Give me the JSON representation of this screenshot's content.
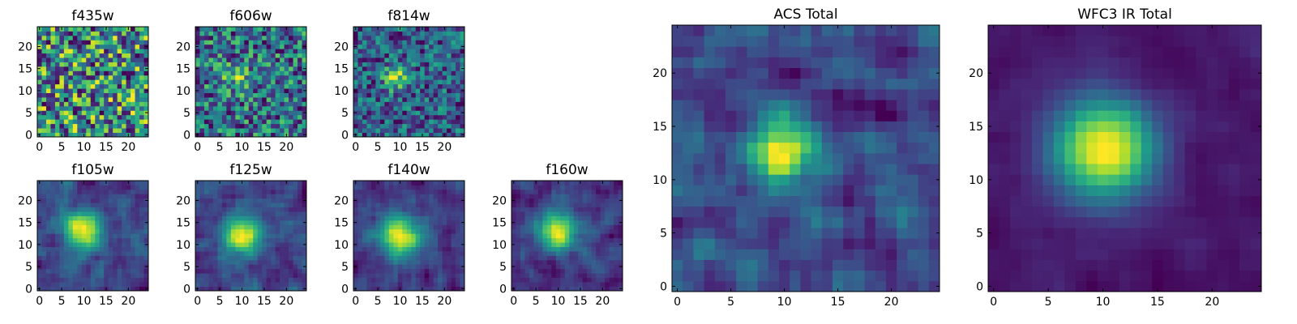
{
  "chart_data": [
    {
      "type": "heatmap",
      "title": "f435w",
      "xlim": [
        0,
        25
      ],
      "ylim": [
        0,
        25
      ],
      "x_ticks": [
        0,
        5,
        10,
        15,
        20
      ],
      "y_ticks": [
        0,
        5,
        10,
        15,
        20
      ],
      "grid_size": 25,
      "colormap": "viridis",
      "source_peak": null,
      "source_amplitude": 0.0,
      "source_width": 2.5,
      "noise_level": 1.0,
      "seed": 11
    },
    {
      "type": "heatmap",
      "title": "f606w",
      "xlim": [
        0,
        25
      ],
      "ylim": [
        0,
        25
      ],
      "x_ticks": [
        0,
        5,
        10,
        15,
        20
      ],
      "y_ticks": [
        0,
        5,
        10,
        15,
        20
      ],
      "grid_size": 25,
      "colormap": "viridis",
      "source_peak": [
        9,
        13
      ],
      "source_amplitude": 0.35,
      "source_width": 2.5,
      "noise_level": 1.0,
      "seed": 23
    },
    {
      "type": "heatmap",
      "title": "f814w",
      "xlim": [
        0,
        25
      ],
      "ylim": [
        0,
        25
      ],
      "x_ticks": [
        0,
        5,
        10,
        15,
        20
      ],
      "y_ticks": [
        0,
        5,
        10,
        15,
        20
      ],
      "grid_size": 25,
      "colormap": "viridis",
      "source_peak": [
        9,
        13
      ],
      "source_amplitude": 0.8,
      "source_width": 2.0,
      "noise_level": 1.0,
      "seed": 37
    },
    {
      "type": "heatmap",
      "title": "f105w",
      "xlim": [
        0,
        25
      ],
      "ylim": [
        0,
        25
      ],
      "x_ticks": [
        0,
        5,
        10,
        15,
        20
      ],
      "y_ticks": [
        0,
        5,
        10,
        15,
        20
      ],
      "grid_size": 25,
      "colormap": "viridis",
      "source_peak": [
        10,
        13
      ],
      "source_amplitude": 0.9,
      "source_width": 3.0,
      "noise_level": 0.75,
      "seed": 41
    },
    {
      "type": "heatmap",
      "title": "f125w",
      "xlim": [
        0,
        25
      ],
      "ylim": [
        0,
        25
      ],
      "x_ticks": [
        0,
        5,
        10,
        15,
        20
      ],
      "y_ticks": [
        0,
        5,
        10,
        15,
        20
      ],
      "grid_size": 25,
      "colormap": "viridis",
      "source_peak": [
        10,
        12
      ],
      "source_amplitude": 0.9,
      "source_width": 3.2,
      "noise_level": 0.75,
      "seed": 53
    },
    {
      "type": "heatmap",
      "title": "f140w",
      "xlim": [
        0,
        25
      ],
      "ylim": [
        0,
        25
      ],
      "x_ticks": [
        0,
        5,
        10,
        15,
        20
      ],
      "y_ticks": [
        0,
        5,
        10,
        15,
        20
      ],
      "grid_size": 25,
      "colormap": "viridis",
      "source_peak": [
        10,
        12
      ],
      "source_amplitude": 0.95,
      "source_width": 3.5,
      "noise_level": 0.7,
      "seed": 67
    },
    {
      "type": "heatmap",
      "title": "f160w",
      "xlim": [
        0,
        25
      ],
      "ylim": [
        0,
        25
      ],
      "x_ticks": [
        0,
        5,
        10,
        15,
        20
      ],
      "y_ticks": [
        0,
        5,
        10,
        15,
        20
      ],
      "grid_size": 25,
      "colormap": "viridis",
      "source_peak": [
        10,
        13
      ],
      "source_amplitude": 0.95,
      "source_width": 3.2,
      "noise_level": 0.7,
      "seed": 79
    },
    {
      "type": "heatmap",
      "title": "ACS Total",
      "xlim": [
        0,
        25
      ],
      "ylim": [
        0,
        25
      ],
      "x_ticks": [
        0,
        5,
        10,
        15,
        20
      ],
      "y_ticks": [
        0,
        5,
        10,
        15,
        20
      ],
      "grid_size": 25,
      "colormap": "viridis",
      "source_peak": [
        10,
        13
      ],
      "source_amplitude": 0.7,
      "source_width": 2.3,
      "noise_level": 0.8,
      "seed": 97
    },
    {
      "type": "heatmap",
      "title": "WFC3 IR Total",
      "xlim": [
        0,
        25
      ],
      "ylim": [
        0,
        25
      ],
      "x_ticks": [
        0,
        5,
        10,
        15,
        20
      ],
      "y_ticks": [
        0,
        5,
        10,
        15,
        20
      ],
      "grid_size": 25,
      "colormap": "viridis",
      "source_peak": [
        10,
        13
      ],
      "source_amplitude": 1.0,
      "source_width": 3.3,
      "noise_level": 0.2,
      "seed": 101
    }
  ]
}
